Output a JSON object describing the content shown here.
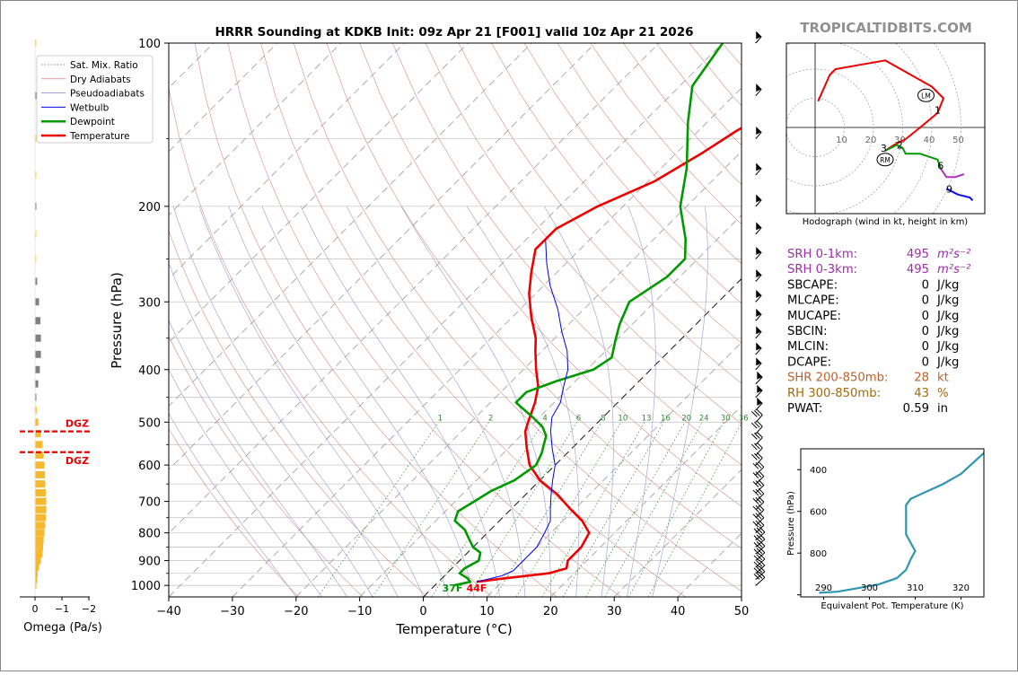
{
  "brand": "TROPICALTIDBITS.COM",
  "chart_data": [
    {
      "type": "line",
      "subtype": "skew-t log-p sounding",
      "title": "HRRR Sounding at KDKB Init: 09z Apr 21 [F001] valid 10z Apr 21 2026",
      "xlabel": "Temperature (°C)",
      "ylabel": "Pressure (hPa)",
      "xlim": [
        -40,
        50
      ],
      "ylim": [
        1050,
        100
      ],
      "y_scale": "log",
      "x_ticks": [
        "−40",
        "−30",
        "−20",
        "−10",
        "0",
        "10",
        "20",
        "30",
        "40",
        "50"
      ],
      "y_ticks": [
        "100",
        "200",
        "300",
        "400",
        "500",
        "600",
        "700",
        "800",
        "900",
        "1000"
      ],
      "legend": {
        "placement": "top-left",
        "entries": [
          {
            "label": "Sat. Mix. Ratio",
            "color": "#2e8b2e"
          },
          {
            "label": "Dry Adiabats",
            "color": "#d06060"
          },
          {
            "label": "Pseudoadiabats",
            "color": "#8080d0"
          },
          {
            "label": "Wetbulb",
            "color": "#0000ee"
          },
          {
            "label": "Dewpoint",
            "color": "#009900"
          },
          {
            "label": "Temperature",
            "color": "#ee0000"
          }
        ]
      },
      "mixing_ratio_labels": [
        "1",
        "2",
        "4",
        "6",
        "8",
        "10",
        "13",
        "16",
        "20",
        "24",
        "30",
        "36"
      ],
      "surface_labels": {
        "dewpoint": "37F",
        "temperature": "44F"
      },
      "series": [
        {
          "name": "Temperature",
          "color": "#ee0000",
          "points": [
            [
              6,
              985
            ],
            [
              10,
              970
            ],
            [
              16,
              950
            ],
            [
              18,
              930
            ],
            [
              17,
              900
            ],
            [
              17,
              850
            ],
            [
              16,
              800
            ],
            [
              13,
              760
            ],
            [
              9,
              720
            ],
            [
              5,
              680
            ],
            [
              0,
              640
            ],
            [
              -4,
              600
            ],
            [
              -7,
              560
            ],
            [
              -10,
              520
            ],
            [
              -11,
              500
            ],
            [
              -13,
              460
            ],
            [
              -15,
              430
            ],
            [
              -18,
              400
            ],
            [
              -21,
              370
            ],
            [
              -23,
              350
            ],
            [
              -27,
              320
            ],
            [
              -31,
              290
            ],
            [
              -34,
              265
            ],
            [
              -37,
              240
            ],
            [
              -37,
              220
            ],
            [
              -34,
              200
            ],
            [
              -29,
              180
            ],
            [
              -26,
              160
            ],
            [
              -24,
              145
            ],
            [
              -21,
              130
            ],
            [
              -17,
              115
            ],
            [
              -14,
              100
            ]
          ]
        },
        {
          "name": "Dewpoint",
          "color": "#009900",
          "points": [
            [
              3,
              1000
            ],
            [
              5,
              985
            ],
            [
              4,
              970
            ],
            [
              2,
              950
            ],
            [
              2,
              930
            ],
            [
              3,
              900
            ],
            [
              2,
              870
            ],
            [
              0,
              850
            ],
            [
              -2,
              820
            ],
            [
              -4,
              790
            ],
            [
              -7,
              760
            ],
            [
              -8,
              730
            ],
            [
              -7,
              700
            ],
            [
              -6,
              670
            ],
            [
              -4,
              640
            ],
            [
              -3,
              600
            ],
            [
              -4,
              570
            ],
            [
              -5,
              550
            ],
            [
              -6,
              530
            ],
            [
              -8,
              510
            ],
            [
              -11,
              490
            ],
            [
              -16,
              460
            ],
            [
              -16,
              440
            ],
            [
              -13,
              420
            ],
            [
              -9,
              400
            ],
            [
              -8,
              380
            ],
            [
              -10,
              355
            ],
            [
              -12,
              330
            ],
            [
              -14,
              300
            ],
            [
              -12,
              270
            ],
            [
              -12,
              250
            ],
            [
              -15,
              230
            ],
            [
              -21,
              200
            ],
            [
              -26,
              170
            ],
            [
              -33,
              140
            ],
            [
              -38,
              120
            ],
            [
              -40,
              100
            ]
          ]
        },
        {
          "name": "Wetbulb",
          "color": "#0000ee",
          "points": [
            [
              6,
              985
            ],
            [
              9,
              960
            ],
            [
              10,
              940
            ],
            [
              10,
              900
            ],
            [
              10,
              850
            ],
            [
              9,
              800
            ],
            [
              8,
              760
            ],
            [
              6,
              720
            ],
            [
              4,
              680
            ],
            [
              2,
              640
            ],
            [
              0,
              600
            ],
            [
              -3,
              560
            ],
            [
              -6,
              520
            ],
            [
              -8,
              490
            ],
            [
              -9,
              460
            ],
            [
              -11,
              430
            ],
            [
              -13,
              400
            ],
            [
              -16,
              370
            ],
            [
              -20,
              340
            ],
            [
              -24,
              310
            ],
            [
              -29,
              280
            ],
            [
              -33,
              255
            ],
            [
              -37,
              230
            ]
          ]
        }
      ],
      "wind_barbs_hpa": [
        1000,
        975,
        950,
        925,
        900,
        875,
        850,
        825,
        800,
        775,
        750,
        725,
        700,
        675,
        650,
        625,
        600,
        575,
        550,
        525,
        500,
        475,
        450,
        425,
        400,
        375,
        350,
        325,
        300,
        275,
        250,
        225,
        200,
        175,
        150,
        125,
        100
      ]
    },
    {
      "type": "bar",
      "title": "",
      "xlabel": "Omega (Pa/s)",
      "ylabel": "",
      "x_ticks": [
        "0",
        "−1",
        "−2"
      ],
      "xlim": [
        0,
        -2
      ],
      "dgz_label": "DGZ",
      "dgz_color": "#ee0000",
      "dgz_top_hpa": 520,
      "dgz_bottom_hpa": 568,
      "bar_colors": {
        "gray": "#808080",
        "orange": "#f5b82e",
        "yellow": "#f5e04a"
      },
      "bars": [
        {
          "p": 1000,
          "v": -0.05,
          "c": "orange"
        },
        {
          "p": 975,
          "v": -0.08,
          "c": "orange"
        },
        {
          "p": 950,
          "v": -0.1,
          "c": "orange"
        },
        {
          "p": 925,
          "v": -0.15,
          "c": "orange"
        },
        {
          "p": 900,
          "v": -0.22,
          "c": "orange"
        },
        {
          "p": 875,
          "v": -0.28,
          "c": "orange"
        },
        {
          "p": 850,
          "v": -0.3,
          "c": "orange"
        },
        {
          "p": 825,
          "v": -0.32,
          "c": "orange"
        },
        {
          "p": 800,
          "v": -0.35,
          "c": "orange"
        },
        {
          "p": 775,
          "v": -0.38,
          "c": "orange"
        },
        {
          "p": 750,
          "v": -0.4,
          "c": "orange"
        },
        {
          "p": 725,
          "v": -0.42,
          "c": "orange"
        },
        {
          "p": 700,
          "v": -0.42,
          "c": "orange"
        },
        {
          "p": 675,
          "v": -0.4,
          "c": "orange"
        },
        {
          "p": 650,
          "v": -0.38,
          "c": "orange"
        },
        {
          "p": 625,
          "v": -0.37,
          "c": "orange"
        },
        {
          "p": 600,
          "v": -0.35,
          "c": "orange"
        },
        {
          "p": 575,
          "v": -0.32,
          "c": "orange"
        },
        {
          "p": 550,
          "v": -0.28,
          "c": "orange"
        },
        {
          "p": 525,
          "v": -0.22,
          "c": "orange"
        },
        {
          "p": 500,
          "v": -0.12,
          "c": "orange"
        },
        {
          "p": 475,
          "v": -0.06,
          "c": "orange"
        },
        {
          "p": 450,
          "v": -0.03,
          "c": "gray"
        },
        {
          "p": 425,
          "v": -0.12,
          "c": "gray"
        },
        {
          "p": 400,
          "v": -0.18,
          "c": "gray"
        },
        {
          "p": 375,
          "v": -0.22,
          "c": "gray"
        },
        {
          "p": 350,
          "v": -0.22,
          "c": "gray"
        },
        {
          "p": 325,
          "v": -0.2,
          "c": "gray"
        },
        {
          "p": 300,
          "v": -0.15,
          "c": "gray"
        },
        {
          "p": 275,
          "v": -0.08,
          "c": "gray"
        },
        {
          "p": 250,
          "v": -0.02,
          "c": "yellow"
        },
        {
          "p": 225,
          "v": -0.02,
          "c": "yellow"
        },
        {
          "p": 200,
          "v": -0.02,
          "c": "gray"
        },
        {
          "p": 175,
          "v": -0.02,
          "c": "yellow"
        },
        {
          "p": 150,
          "v": -0.02,
          "c": "yellow"
        },
        {
          "p": 125,
          "v": -0.02,
          "c": "gray"
        },
        {
          "p": 100,
          "v": -0.02,
          "c": "yellow"
        }
      ]
    },
    {
      "type": "line",
      "subtype": "hodograph",
      "title": "",
      "caption": "Hodograph (wind in kt, height in km)",
      "ring_labels": [
        "10",
        "20",
        "30",
        "40",
        "50"
      ],
      "ring_values": [
        10,
        20,
        30,
        40,
        50
      ],
      "storm_motion_labels": [
        "LM",
        "RM"
      ],
      "height_labels": [
        {
          "text": "1",
          "u": 42,
          "v": 6
        },
        {
          "text": "2",
          "u": 29,
          "v": -6
        },
        {
          "text": "3",
          "u": 23.5,
          "v": -7
        },
        {
          "text": "6",
          "u": 43,
          "v": -13
        },
        {
          "text": "9",
          "u": 46,
          "v": -21
        }
      ],
      "storm_motion": [
        {
          "label": "LM",
          "u": 38,
          "v": 11
        },
        {
          "label": "RM",
          "u": 24,
          "v": -11
        }
      ],
      "segments": [
        {
          "color": "#ee0000",
          "points": [
            [
              1,
              9
            ],
            [
              5,
              18
            ],
            [
              7,
              20
            ],
            [
              24,
              23
            ],
            [
              40,
              14
            ],
            [
              44,
              10
            ],
            [
              42,
              5
            ],
            [
              36,
              0
            ],
            [
              31,
              -4
            ],
            [
              27,
              -6
            ],
            [
              24,
              -8
            ]
          ]
        },
        {
          "color": "#009900",
          "points": [
            [
              24,
              -8
            ],
            [
              28,
              -6
            ],
            [
              30,
              -7
            ],
            [
              31,
              -9
            ],
            [
              36,
              -9
            ],
            [
              42,
              -11
            ],
            [
              43,
              -14
            ]
          ]
        },
        {
          "color": "#b030c0",
          "points": [
            [
              43,
              -14
            ],
            [
              45,
              -17
            ],
            [
              48,
              -17
            ],
            [
              51,
              -16
            ]
          ]
        },
        {
          "color": "#1010ee",
          "points": [
            [
              45,
              -21
            ],
            [
              49,
              -23
            ],
            [
              53,
              -24
            ],
            [
              54,
              -25
            ]
          ]
        }
      ]
    },
    {
      "type": "line",
      "title": "",
      "xlabel": "Equivalent Pot. Temperature (K)",
      "ylabel": "Pressure (hPa)",
      "xlim": [
        285,
        325
      ],
      "ylim": [
        1010,
        300
      ],
      "x_ticks": [
        "290",
        "300",
        "310",
        "320"
      ],
      "y_ticks": [
        "400",
        "600",
        "800"
      ],
      "series": [
        {
          "color": "#2e96b0",
          "points": [
            [
              289,
              990
            ],
            [
              293,
              985
            ],
            [
              297,
              970
            ],
            [
              302,
              950
            ],
            [
              306,
              920
            ],
            [
              308,
              880
            ],
            [
              309,
              830
            ],
            [
              310,
              790
            ],
            [
              309,
              750
            ],
            [
              308,
              710
            ],
            [
              308,
              660
            ],
            [
              308,
              610
            ],
            [
              308,
              570
            ],
            [
              309,
              540
            ],
            [
              312,
              510
            ],
            [
              316,
              470
            ],
            [
              320,
              420
            ],
            [
              322,
              380
            ],
            [
              324,
              340
            ],
            [
              326,
              300
            ]
          ]
        }
      ]
    }
  ],
  "indices": [
    {
      "label": "SRH 0-1km:",
      "value": "495",
      "unit": "m²s⁻²",
      "color": "#9b30a8",
      "italic_unit": true
    },
    {
      "label": "SRH 0-3km:",
      "value": "495",
      "unit": "m²s⁻²",
      "color": "#9b30a8",
      "italic_unit": true
    },
    {
      "label": "SBCAPE:",
      "value": "0",
      "unit": "J/kg",
      "color": "#000000"
    },
    {
      "label": "MLCAPE:",
      "value": "0",
      "unit": "J/kg",
      "color": "#000000"
    },
    {
      "label": "MUCAPE:",
      "value": "0",
      "unit": "J/kg",
      "color": "#000000"
    },
    {
      "label": "SBCIN:",
      "value": "0",
      "unit": "J/kg",
      "color": "#000000"
    },
    {
      "label": "MLCIN:",
      "value": "0",
      "unit": "J/kg",
      "color": "#000000"
    },
    {
      "label": "DCAPE:",
      "value": "0",
      "unit": "J/kg",
      "color": "#000000"
    },
    {
      "label": "SHR 200-850mb:",
      "value": "28",
      "unit": "kt",
      "color": "#c0602a"
    },
    {
      "label": "RH 300-850mb:",
      "value": "43",
      "unit": "%",
      "color": "#a06a10"
    },
    {
      "label": "PWAT:",
      "value": "0.59",
      "unit": "in",
      "color": "#000000"
    }
  ]
}
